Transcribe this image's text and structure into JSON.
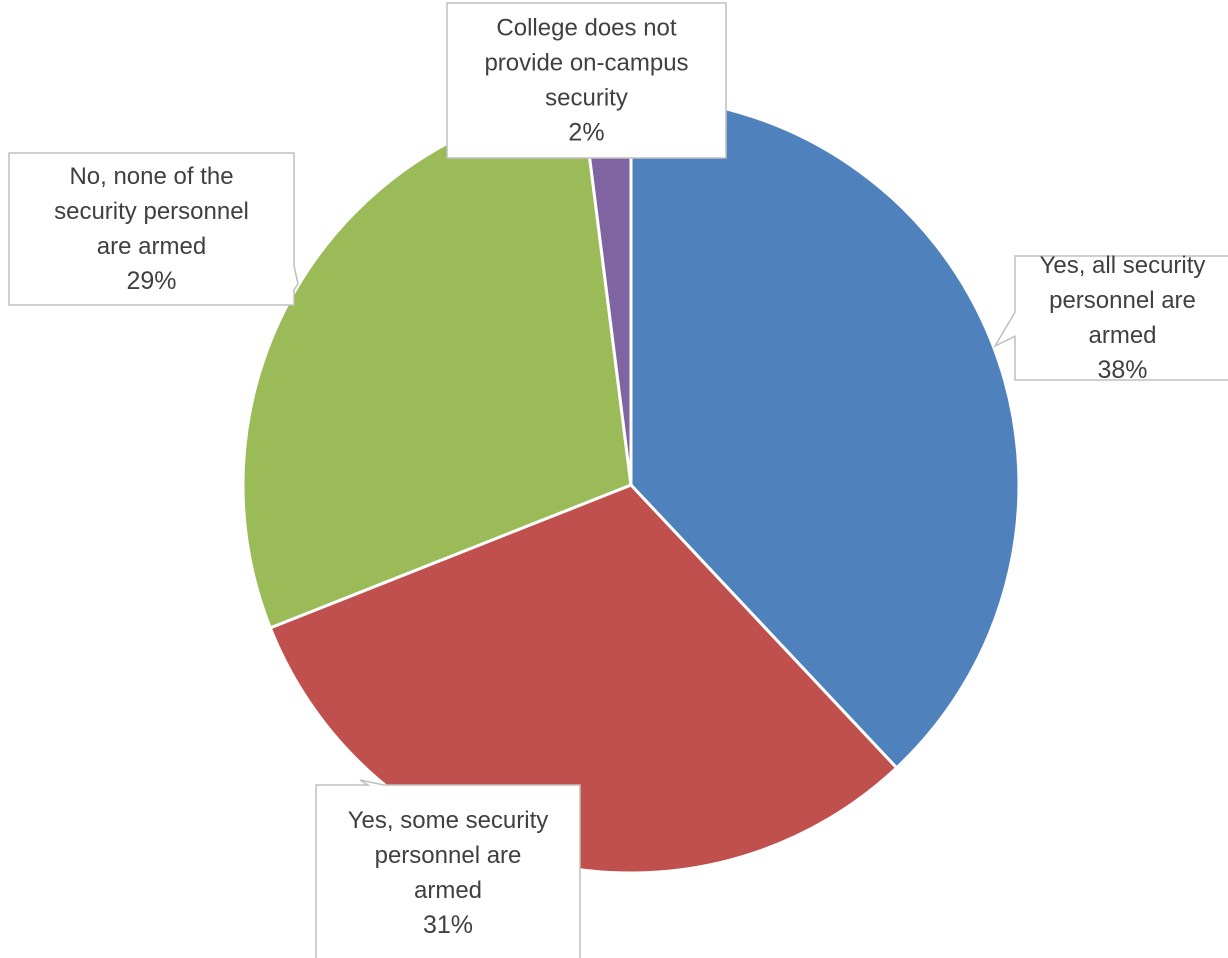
{
  "chart_data": {
    "type": "pie",
    "title": "",
    "slices": [
      {
        "label_lines": [
          "Yes, all security",
          "personnel are",
          "armed"
        ],
        "percent_label": "38%",
        "value": 38,
        "color": "#4F81BD"
      },
      {
        "label_lines": [
          "Yes, some security",
          "personnel are",
          "armed"
        ],
        "percent_label": "31%",
        "value": 31,
        "color": "#C0504D"
      },
      {
        "label_lines": [
          "No, none of the",
          "security personnel",
          "are armed"
        ],
        "percent_label": "29%",
        "value": 29,
        "color": "#9BBB59"
      },
      {
        "label_lines": [
          "College does not",
          "provide on-campus",
          "security"
        ],
        "percent_label": "2%",
        "value": 2,
        "color": "#8064A2"
      }
    ],
    "start_angle": "12 o'clock",
    "direction": "clockwise",
    "legend": "none",
    "data_labels": "callouts"
  }
}
